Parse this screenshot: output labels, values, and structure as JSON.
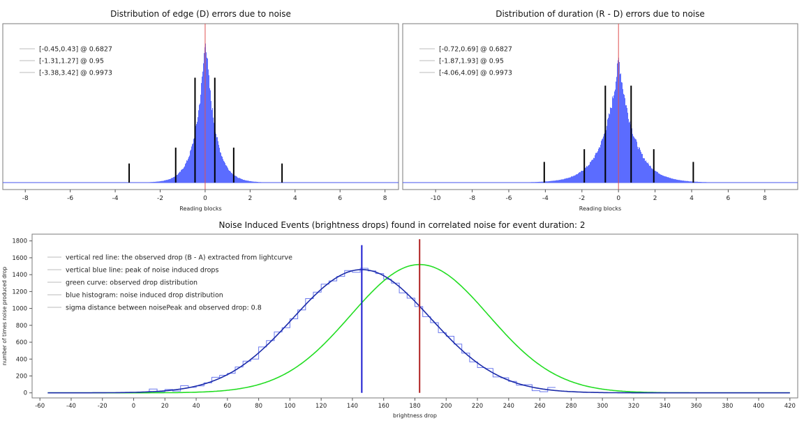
{
  "colors": {
    "hist_blue": "#5b6cff",
    "red_line": "#e05050",
    "dark_red": "#b02020",
    "navy": "#1a2aa8",
    "green": "#22dd22",
    "frame": "#7a7a7a"
  },
  "chart_data": [
    {
      "type": "bar",
      "title": "Distribution of edge (D) errors due to noise",
      "xlabel": "Reading blocks",
      "ylabel": "",
      "xlim": [
        -9,
        8.6
      ],
      "xticks": [
        -8,
        -6,
        -4,
        -2,
        0,
        2,
        4,
        6,
        8
      ],
      "grid": false,
      "legend": {
        "placement": "top-left",
        "entries": [
          "[-0.45,0.43] @ 0.6827",
          "[-1.31,1.27] @ 0.95",
          "[-3.38,3.42] @ 0.9973"
        ]
      },
      "distribution": {
        "center": 0.0,
        "width": 0.43,
        "shape": "laplace-like",
        "peak_fraction": 0.97
      },
      "marker_lines": [
        {
          "x": -0.45,
          "height": 0.66
        },
        {
          "x": 0.43,
          "height": 0.66
        },
        {
          "x": -1.31,
          "height": 0.22
        },
        {
          "x": 1.27,
          "height": 0.22
        },
        {
          "x": -3.38,
          "height": 0.12
        },
        {
          "x": 3.42,
          "height": 0.12
        }
      ],
      "center_line_x": 0
    },
    {
      "type": "bar",
      "title": "Distribution of duration (R - D) errors due to noise",
      "xlabel": "Reading blocks",
      "ylabel": "",
      "xlim": [
        -11.8,
        9.8
      ],
      "xticks": [
        -10,
        -8,
        -6,
        -4,
        -2,
        0,
        2,
        4,
        6,
        8
      ],
      "grid": false,
      "legend": {
        "placement": "top-left",
        "entries": [
          "[-0.72,0.69] @ 0.6827",
          "[-1.87,1.93] @ 0.95",
          "[-4.06,4.09] @ 0.9973"
        ]
      },
      "distribution": {
        "center": 0.0,
        "width": 0.85,
        "shape": "laplace-like",
        "peak_fraction": 0.82
      },
      "marker_lines": [
        {
          "x": -0.72,
          "height": 0.61
        },
        {
          "x": 0.69,
          "height": 0.61
        },
        {
          "x": -1.87,
          "height": 0.21
        },
        {
          "x": 1.93,
          "height": 0.21
        },
        {
          "x": -4.06,
          "height": 0.13
        },
        {
          "x": 4.09,
          "height": 0.13
        }
      ],
      "center_line_x": 0
    },
    {
      "type": "line",
      "title": "Noise Induced Events (brightness drops) found in correlated noise for event duration: 2",
      "xlabel": "brightness drop",
      "ylabel": "number of times noise produced drop",
      "xlim": [
        -65,
        425
      ],
      "ylim": [
        -60,
        1880
      ],
      "xticks": [
        -60,
        -40,
        -20,
        0,
        20,
        40,
        60,
        80,
        100,
        120,
        140,
        160,
        180,
        200,
        220,
        240,
        260,
        280,
        300,
        320,
        340,
        360,
        380,
        400,
        420
      ],
      "yticks": [
        0,
        200,
        400,
        600,
        800,
        1000,
        1200,
        1400,
        1600,
        1800
      ],
      "grid": false,
      "legend": {
        "placement": "top-left",
        "entries": [
          "vertical red line: the observed drop (B - A) extracted from lightcurve",
          "vertical blue line: peak of noise induced drops",
          "green curve: observed drop distribution",
          "blue histogram: noise induced drop distribution",
          "sigma distance between noisePeak and observed drop: 0.8"
        ]
      },
      "series": [
        {
          "name": "blue histogram: noise induced drop distribution",
          "kind": "gaussian",
          "mean": 146,
          "sigma": 44,
          "peak": 1460,
          "xrange": [
            -55,
            420
          ]
        },
        {
          "name": "green curve: observed drop distribution",
          "kind": "gaussian",
          "mean": 183,
          "sigma": 44,
          "peak": 1520,
          "xrange": [
            -55,
            420
          ]
        }
      ],
      "histogram": {
        "bin_start": 0,
        "bin_width": 5,
        "bin_end": 270
      },
      "vertical_lines": [
        {
          "name": "vertical blue line: peak of noise induced drops",
          "x": 146,
          "top": 1750
        },
        {
          "name": "vertical red line: the observed drop (B - A) extracted from lightcurve",
          "x": 183,
          "top": 1820
        }
      ]
    }
  ]
}
